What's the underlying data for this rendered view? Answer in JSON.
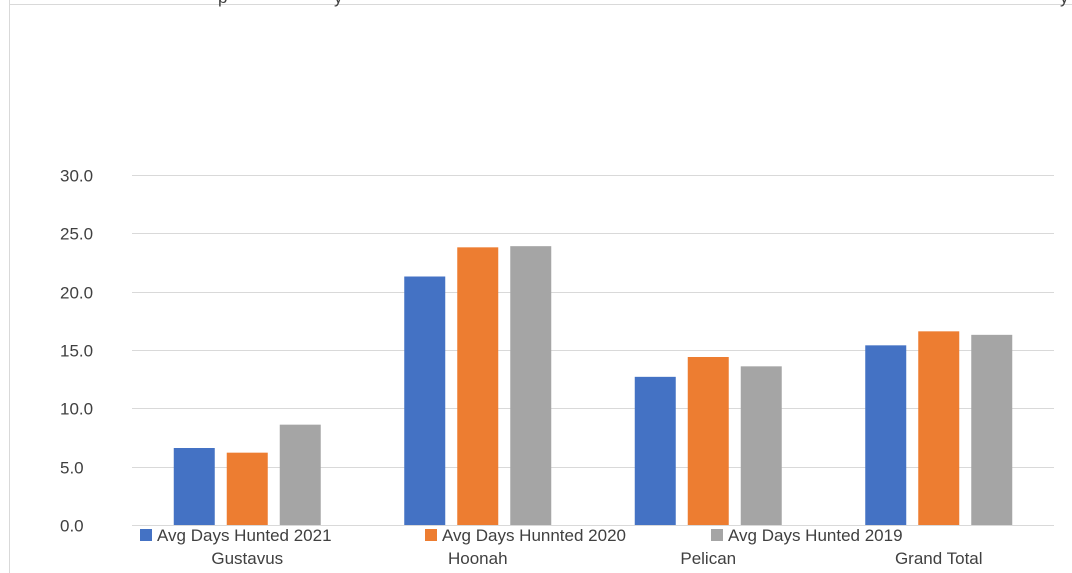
{
  "chart_data": {
    "type": "bar",
    "title_fragment_left": "p",
    "title_fragment_mid": "y",
    "title_fragment_right": "y",
    "categories": [
      "Gustavus",
      "Hoonah",
      "Pelican",
      "Grand Total"
    ],
    "series": [
      {
        "name": "Avg Days Hunted 2021",
        "color": "#4472C4",
        "values": [
          6.6,
          21.3,
          12.7,
          15.4
        ]
      },
      {
        "name": "Avg Days Hunnted 2020",
        "color": "#ED7D31",
        "values": [
          6.2,
          23.8,
          14.4,
          16.6
        ]
      },
      {
        "name": "Avg Days Hunted 2019",
        "color": "#A5A5A5",
        "values": [
          8.6,
          23.9,
          13.6,
          16.3
        ]
      }
    ],
    "y_ticks": [
      "0.0",
      "5.0",
      "10.0",
      "15.0",
      "20.0",
      "25.0",
      "30.0"
    ],
    "ylim": [
      0,
      30
    ],
    "grid": true,
    "legend_position": "bottom",
    "gridline_color": "#D9D9D9",
    "frame_color": "#D9D9D9"
  }
}
